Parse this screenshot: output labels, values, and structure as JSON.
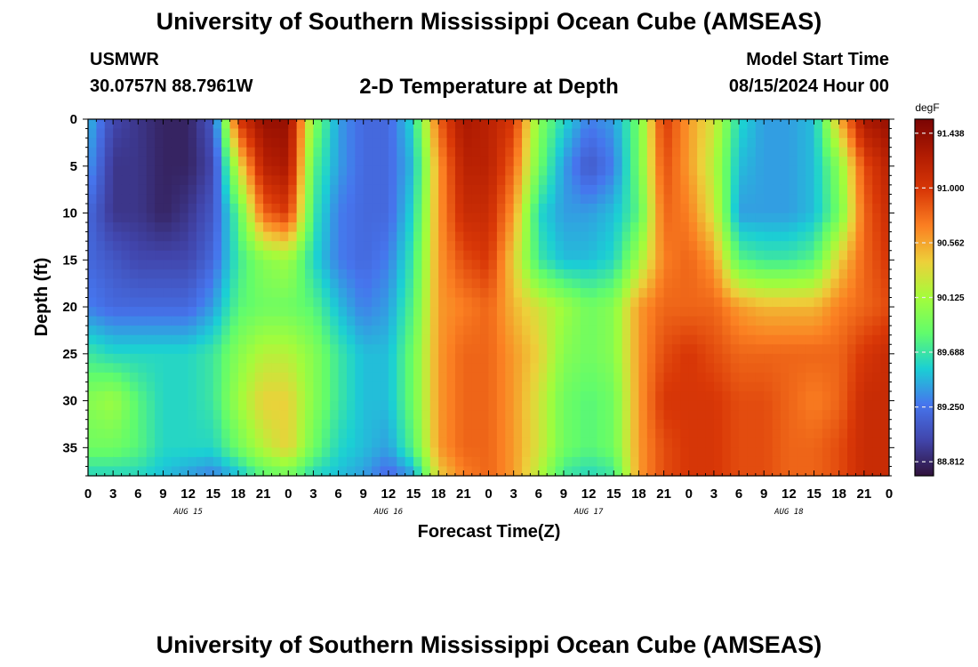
{
  "header": {
    "title": "University of Southern Mississippi Ocean Cube (AMSEAS)",
    "station": "USMWR",
    "coords": "30.0757N  88.7961W",
    "plot_title": "2-D Temperature at Depth",
    "model_start_label": "Model Start Time",
    "model_start_value": "08/15/2024 Hour 00"
  },
  "footer": {
    "title": "University of Southern Mississippi Ocean Cube (AMSEAS)"
  },
  "chart_data": {
    "type": "heatmap",
    "xlabel": "Forecast Time(Z)",
    "ylabel": "Depth (ft)",
    "colorbar_label": "degF",
    "x_hours": [
      0,
      96
    ],
    "x_tick_labels": [
      "0",
      "3",
      "6",
      "9",
      "12",
      "15",
      "18",
      "21",
      "0",
      "3",
      "6",
      "9",
      "12",
      "15",
      "18",
      "21",
      "0",
      "3",
      "6",
      "9",
      "12",
      "15",
      "18",
      "21",
      "0",
      "3",
      "6",
      "9",
      "12",
      "15",
      "18",
      "21",
      "0"
    ],
    "day_labels": [
      {
        "hour": 12,
        "label": "AUG 15"
      },
      {
        "hour": 36,
        "label": "AUG 16"
      },
      {
        "hour": 60,
        "label": "AUG 17"
      },
      {
        "hour": 84,
        "label": "AUG 18"
      }
    ],
    "y_ticks": [
      0,
      5,
      10,
      15,
      20,
      25,
      30,
      35
    ],
    "ylim": [
      0,
      38
    ],
    "y_reversed": true,
    "colorbar_ticks": [
      "91.438",
      "91.000",
      "90.562",
      "90.125",
      "89.688",
      "89.250",
      "88.812"
    ],
    "colorbar_range": [
      88.7,
      91.55
    ],
    "depths_ft": [
      0,
      5,
      10,
      15,
      20,
      25,
      30,
      35,
      38
    ],
    "times_hr": [
      0,
      3,
      6,
      9,
      12,
      15,
      18,
      21,
      24,
      27,
      30,
      33,
      36,
      39,
      42,
      45,
      48,
      51,
      54,
      57,
      60,
      63,
      66,
      69,
      72,
      75,
      78,
      81,
      84,
      87,
      90,
      93,
      96
    ],
    "temperature_degF": [
      [
        89.5,
        89.0,
        88.9,
        88.8,
        88.8,
        89.1,
        91.0,
        91.4,
        91.4,
        90.0,
        89.4,
        89.2,
        89.2,
        89.6,
        90.8,
        91.3,
        91.2,
        91.0,
        90.0,
        89.6,
        89.3,
        89.4,
        89.9,
        91.0,
        90.6,
        90.3,
        89.6,
        89.4,
        89.4,
        89.5,
        90.5,
        91.3,
        91.4
      ],
      [
        89.4,
        88.9,
        88.9,
        88.8,
        88.8,
        89.0,
        90.3,
        91.2,
        91.3,
        89.8,
        89.4,
        89.2,
        89.2,
        89.5,
        90.6,
        91.2,
        91.2,
        90.8,
        89.9,
        89.4,
        89.1,
        89.3,
        89.9,
        90.9,
        90.6,
        90.2,
        89.5,
        89.4,
        89.4,
        89.5,
        90.0,
        90.9,
        91.2
      ],
      [
        89.2,
        88.9,
        88.9,
        88.8,
        88.9,
        89.1,
        89.8,
        90.8,
        91.0,
        89.7,
        89.3,
        89.2,
        89.2,
        89.6,
        90.6,
        91.1,
        91.1,
        90.6,
        89.6,
        89.4,
        89.4,
        89.5,
        89.8,
        90.8,
        90.7,
        90.3,
        89.4,
        89.4,
        89.4,
        89.5,
        89.9,
        90.8,
        91.1
      ],
      [
        89.2,
        89.1,
        89.0,
        89.0,
        89.0,
        89.2,
        89.7,
        90.0,
        90.1,
        89.6,
        89.3,
        89.2,
        89.3,
        89.7,
        90.6,
        90.9,
        91.0,
        90.4,
        89.7,
        89.5,
        89.5,
        89.6,
        90.1,
        90.7,
        90.8,
        90.6,
        89.8,
        89.7,
        89.7,
        89.8,
        90.4,
        90.8,
        91.0
      ],
      [
        89.3,
        89.2,
        89.2,
        89.2,
        89.2,
        89.4,
        89.8,
        89.9,
        89.9,
        89.8,
        89.5,
        89.3,
        89.4,
        89.8,
        90.6,
        90.7,
        90.8,
        90.5,
        90.3,
        90.1,
        89.9,
        90.0,
        90.6,
        90.8,
        90.8,
        90.8,
        90.6,
        90.5,
        90.5,
        90.5,
        90.7,
        90.8,
        90.9
      ],
      [
        89.7,
        89.6,
        89.6,
        89.6,
        89.6,
        89.7,
        90.0,
        90.2,
        90.2,
        90.0,
        89.7,
        89.5,
        89.5,
        89.9,
        90.6,
        90.8,
        90.8,
        90.6,
        90.4,
        90.0,
        89.9,
        90.0,
        90.6,
        90.9,
        91.0,
        90.9,
        90.8,
        90.8,
        90.8,
        90.8,
        90.8,
        91.0,
        91.1
      ],
      [
        90.0,
        90.1,
        89.8,
        89.6,
        89.6,
        89.7,
        90.1,
        90.4,
        90.4,
        90.0,
        89.7,
        89.5,
        89.5,
        89.9,
        90.6,
        90.8,
        90.8,
        90.6,
        90.3,
        89.9,
        89.8,
        89.9,
        90.6,
        91.0,
        91.0,
        91.0,
        90.9,
        90.9,
        90.8,
        90.7,
        90.8,
        91.1,
        91.1
      ],
      [
        89.9,
        89.9,
        89.8,
        89.6,
        89.6,
        89.6,
        89.9,
        90.2,
        90.4,
        89.9,
        89.6,
        89.5,
        89.4,
        89.8,
        90.6,
        90.8,
        90.8,
        90.6,
        90.3,
        89.9,
        89.8,
        89.9,
        90.6,
        90.9,
        91.0,
        91.0,
        90.9,
        90.9,
        90.8,
        90.8,
        90.9,
        91.1,
        91.1
      ],
      [
        89.6,
        89.6,
        89.6,
        89.5,
        89.4,
        89.3,
        89.5,
        89.8,
        89.9,
        89.6,
        89.5,
        89.4,
        89.2,
        89.4,
        90.4,
        90.7,
        90.8,
        90.6,
        90.2,
        89.7,
        89.6,
        89.7,
        90.6,
        90.9,
        91.0,
        91.0,
        90.9,
        90.9,
        90.8,
        90.8,
        90.9,
        91.1,
        91.1
      ]
    ]
  }
}
